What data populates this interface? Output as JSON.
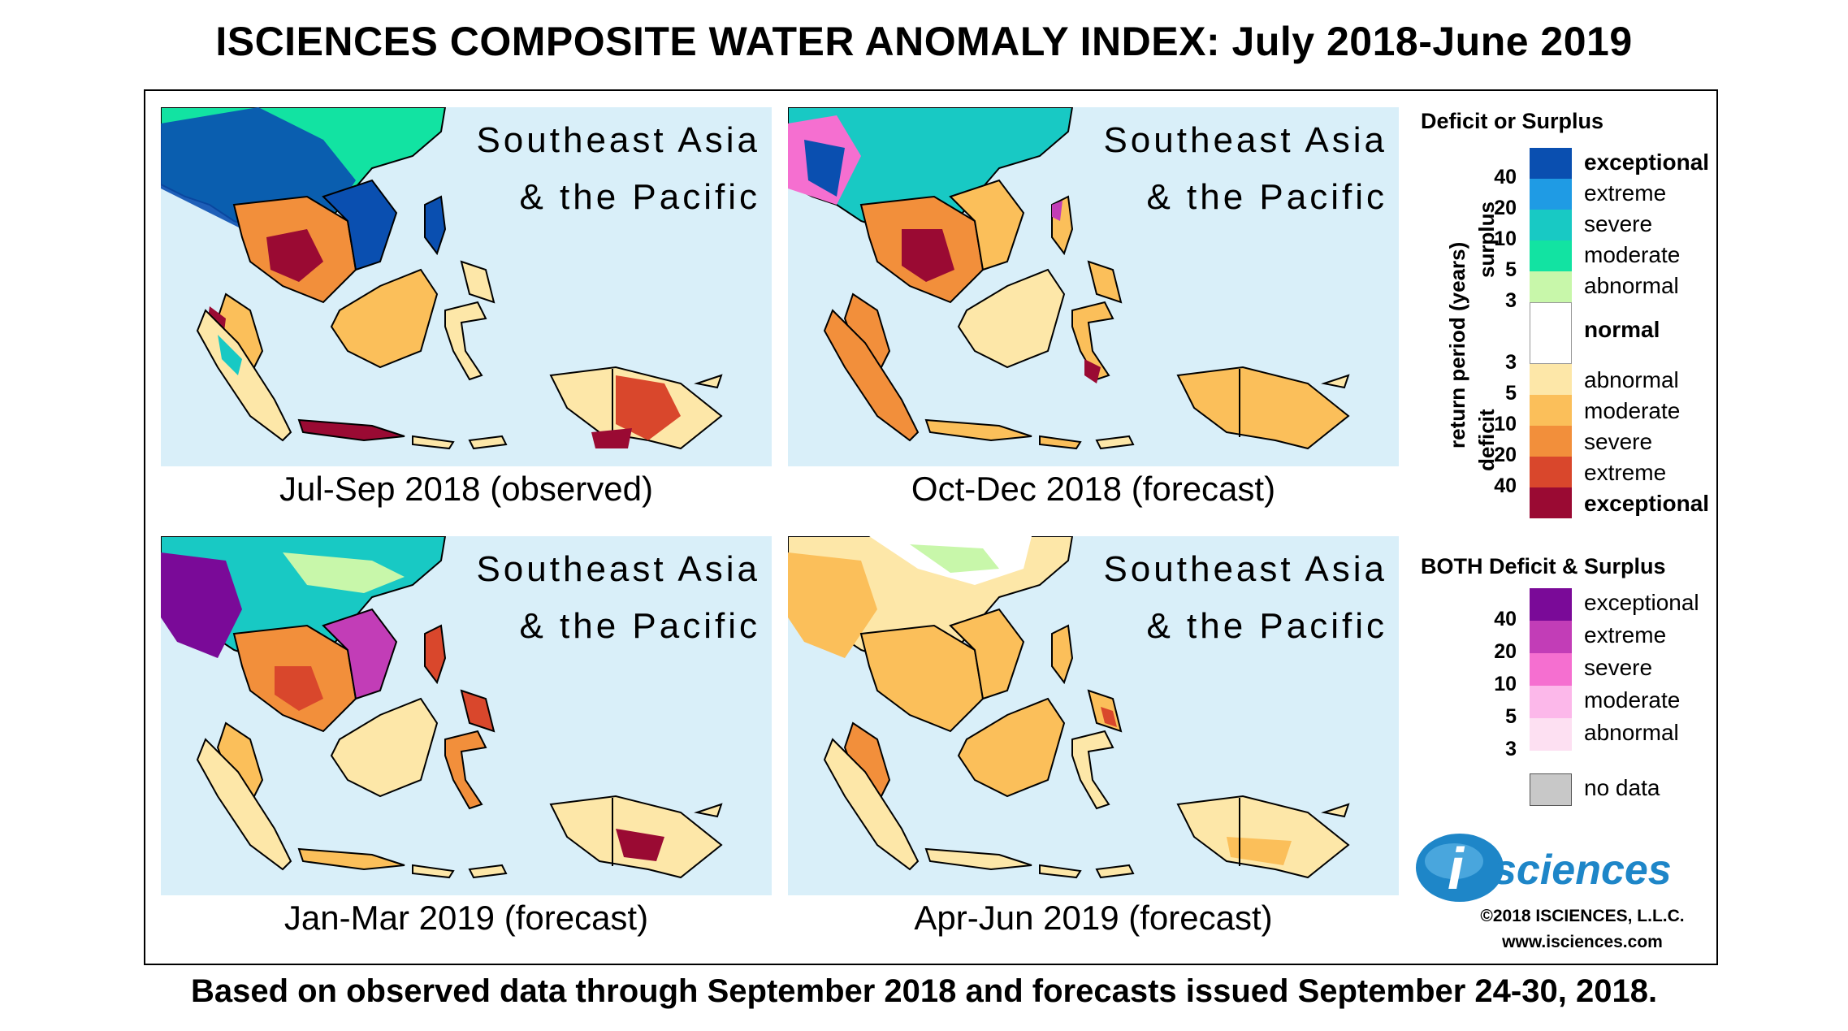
{
  "title": "ISCIENCES COMPOSITE WATER ANOMALY INDEX: July 2018-June 2019",
  "footer": "Based on observed data through September 2018 and forecasts issued September 24-30, 2018.",
  "panels": [
    {
      "region": "Southeast Asia\n& the Pacific",
      "caption": "Jul-Sep 2018 (observed)"
    },
    {
      "region": "Southeast Asia\n& the Pacific",
      "caption": "Oct-Dec 2018 (forecast)"
    },
    {
      "region": "Southeast Asia\n& the Pacific",
      "caption": "Jan-Mar 2019 (forecast)"
    },
    {
      "region": "Southeast Asia\n& the Pacific",
      "caption": "Apr-Jun 2019 (forecast)"
    }
  ],
  "colors": {
    "ocean": "#d9eff9",
    "exceptional_surplus": "#0a4fb0",
    "extreme_surplus": "#1f9be4",
    "severe_surplus": "#18c9c4",
    "moderate_surplus": "#12e3a2",
    "abnormal_surplus": "#c8f7aa",
    "normal": "#ffffff",
    "abnormal_deficit": "#fde7a8",
    "moderate_deficit": "#fbbf5a",
    "severe_deficit": "#f28f3b",
    "extreme_deficit": "#d9472c",
    "exceptional_deficit": "#9a0a33",
    "both_exceptional": "#7a0a98",
    "both_extreme": "#c23db7",
    "both_severe": "#f56fd0",
    "both_moderate": "#fcb8ea",
    "both_abnormal": "#fde0f2",
    "no_data": "#c8c8c8"
  },
  "legend": {
    "heading1": "Deficit or Surplus",
    "surplus_label": "surplus",
    "deficit_label": "deficit",
    "axis_label": "return period (years)",
    "surplus_classes": [
      "exceptional",
      "extreme",
      "severe",
      "moderate",
      "abnormal"
    ],
    "normal_label": "normal",
    "deficit_classes": [
      "abnormal",
      "moderate",
      "severe",
      "extreme",
      "exceptional"
    ],
    "surplus_ticks": [
      "40",
      "20",
      "10",
      "5",
      "3"
    ],
    "deficit_ticks": [
      "3",
      "5",
      "10",
      "20",
      "40"
    ],
    "heading2": "BOTH Deficit & Surplus",
    "both_classes": [
      "exceptional",
      "extreme",
      "severe",
      "moderate",
      "abnormal"
    ],
    "both_ticks": [
      "40",
      "20",
      "10",
      "5",
      "3"
    ],
    "no_data_label": "no data"
  },
  "logo_text": "sciences",
  "logo_letter": "i",
  "copyright": "©2018 ISCIENCES, L.L.C.",
  "website": "www.isciences.com"
}
